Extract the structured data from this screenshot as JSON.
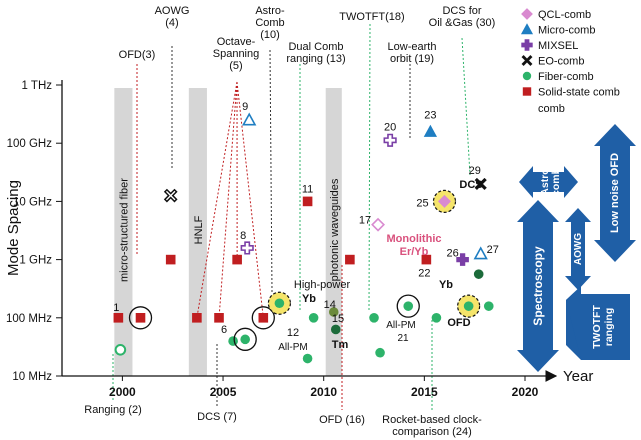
{
  "chart_data": {
    "type": "scatter",
    "ylabel": "Mode Spacing",
    "xlabel": "Year",
    "x_ticks": [
      "2000",
      "2005",
      "2010",
      "2015",
      "2020"
    ],
    "y_ticks": [
      "1 THz",
      "100 GHz",
      "10 GHz",
      "1 GHz",
      "100 MHz",
      "10 MHz"
    ],
    "xlim": [
      1997,
      2020
    ],
    "ylim_log10_hz": [
      7,
      12
    ],
    "grid": false,
    "legend_position": "top-right",
    "legend": [
      {
        "label": "QCL-comb",
        "marker": "diamond",
        "color": "#d98ad0"
      },
      {
        "label": "Micro-comb",
        "marker": "triangle",
        "color": "#1f7ec2"
      },
      {
        "label": "MIXSEL",
        "marker": "plus",
        "color": "#7a3fa6"
      },
      {
        "label": "EO-comb",
        "marker": "x",
        "color": "#111111"
      },
      {
        "label": "Fiber-comb",
        "marker": "circle",
        "color": "#2db36a"
      },
      {
        "label": "Solid-state comb",
        "marker": "square",
        "color": "#c01e20"
      }
    ],
    "regions": [
      {
        "label": "micro-structured fiber",
        "x_range": [
          1999.6,
          2000.5
        ]
      },
      {
        "label": "HNLF",
        "x_range": [
          2003.3,
          2004.2
        ]
      },
      {
        "label": "photonic waveguides",
        "x_range": [
          2010.1,
          2010.9
        ]
      }
    ],
    "points": [
      {
        "type": "solid-state",
        "year": 1999.8,
        "log10_hz": 8.0,
        "label": "1"
      },
      {
        "type": "solid-state",
        "year": 2000.9,
        "log10_hz": 8.0,
        "circled": true
      },
      {
        "type": "solid-state",
        "year": 2002.4,
        "log10_hz": 9.0
      },
      {
        "type": "solid-state",
        "year": 2003.7,
        "log10_hz": 8.0
      },
      {
        "type": "solid-state",
        "year": 2004.8,
        "log10_hz": 8.0
      },
      {
        "type": "solid-state",
        "year": 2005.7,
        "log10_hz": 9.0
      },
      {
        "type": "solid-state",
        "year": 2007.0,
        "log10_hz": 8.0,
        "circled": true
      },
      {
        "type": "solid-state",
        "year": 2009.2,
        "log10_hz": 10.0,
        "label": "11"
      },
      {
        "type": "solid-state",
        "year": 2011.3,
        "log10_hz": 9.0
      },
      {
        "type": "solid-state",
        "year": 2015.1,
        "log10_hz": 9.0,
        "label": "22"
      },
      {
        "type": "eo",
        "year": 2002.4,
        "log10_hz": 10.1,
        "hollow": true
      },
      {
        "type": "eo",
        "year": 2017.8,
        "log10_hz": 10.3,
        "label": "29"
      },
      {
        "type": "micro",
        "year": 2006.3,
        "log10_hz": 11.4,
        "label": "9",
        "hollow": true
      },
      {
        "type": "micro",
        "year": 2015.3,
        "log10_hz": 11.2,
        "label": "23"
      },
      {
        "type": "micro",
        "year": 2017.8,
        "log10_hz": 9.1,
        "label": "27",
        "hollow": true
      },
      {
        "type": "mixsel",
        "year": 2006.2,
        "log10_hz": 9.2,
        "label": "8",
        "hollow": true
      },
      {
        "type": "mixsel",
        "year": 2013.3,
        "log10_hz": 11.05,
        "label": "20",
        "hollow": true
      },
      {
        "type": "mixsel",
        "year": 2016.9,
        "log10_hz": 9.0,
        "label": "26"
      },
      {
        "type": "qcl",
        "year": 2012.7,
        "log10_hz": 9.6,
        "label": "17",
        "hollow": true
      },
      {
        "type": "qcl",
        "year": 2016.0,
        "log10_hz": 10.0,
        "label": "25",
        "highlight": true
      },
      {
        "type": "fiber",
        "year": 1999.9,
        "log10_hz": 7.45,
        "hollow": true
      },
      {
        "type": "fiber",
        "year": 2005.5,
        "log10_hz": 7.6,
        "label": "6"
      },
      {
        "type": "fiber",
        "year": 2006.1,
        "log10_hz": 7.63,
        "circled": true
      },
      {
        "type": "fiber",
        "year": 2007.8,
        "log10_hz": 8.25,
        "label": "10",
        "highlight": true
      },
      {
        "type": "fiber",
        "year": 2009.2,
        "log10_hz": 7.3
      },
      {
        "type": "fiber",
        "year": 2009.5,
        "log10_hz": 8.0
      },
      {
        "type": "fiber",
        "year": 2010.5,
        "log10_hz": 8.1,
        "label": "14",
        "darkgreen": true
      },
      {
        "type": "fiber",
        "year": 2010.6,
        "log10_hz": 7.8,
        "darkgreen": true
      },
      {
        "type": "fiber",
        "year": 2012.5,
        "log10_hz": 8.0
      },
      {
        "type": "fiber",
        "year": 2012.8,
        "log10_hz": 7.4
      },
      {
        "type": "fiber",
        "year": 2014.2,
        "log10_hz": 8.2,
        "label": "21",
        "circled": true
      },
      {
        "type": "fiber",
        "year": 2015.6,
        "log10_hz": 8.0
      },
      {
        "type": "fiber",
        "year": 2017.2,
        "log10_hz": 8.2,
        "label": "28",
        "highlight": true
      },
      {
        "type": "fiber",
        "year": 2017.7,
        "log10_hz": 8.75,
        "darkgreen": true
      },
      {
        "type": "fiber",
        "year": 2018.2,
        "log10_hz": 8.2
      }
    ],
    "annotations": {
      "aowg": "AOWG\n(4)",
      "ofd3": "OFD(3)",
      "octave": "Octave-\nSpanning\n(5)",
      "astro": "Astro-\nComb\n(10)",
      "dualcomb": "Dual Comb\nranging (13)",
      "twotft": "TWOTFT(18)",
      "lowearth": "Low-earth\norbit (19)",
      "dcsoil": "DCS for\nOil &Gas (30)",
      "ranging2": "Ranging (2)",
      "dcs7": "DCS (7)",
      "ofd16": "OFD (16)",
      "rocket": "Rocket-based clock-\ncomparison (24)",
      "highpower": "High-power",
      "yb14": "Yb",
      "allpm12": "All-PM",
      "tm15": "Tm",
      "allpm21": "All-PM",
      "dcs25": "DCS",
      "monolithic": "Monolithic\nEr/Yb",
      "yb28": "Yb",
      "ofd28": "OFD",
      "n12": "12",
      "n15": "15",
      "n21": "21"
    },
    "applications": {
      "astrocomb": "Astro\ncomb",
      "lownoise": "Low noise OFD",
      "spectroscopy": "Spectroscopy",
      "aowg": "AOWG",
      "twotft": "TWOTFT\nranging"
    }
  }
}
